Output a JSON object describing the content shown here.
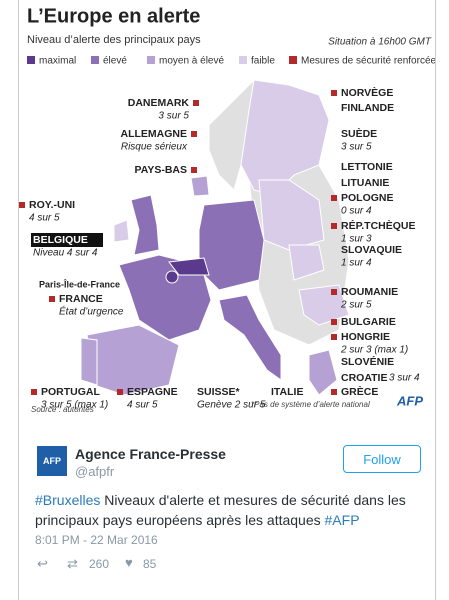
{
  "infographic": {
    "title": "L’Europe en alerte",
    "subtitle": "Niveau d’alerte des principaux pays",
    "situation": "Situation à 16h00 GMT",
    "legend": [
      {
        "label": "maximal",
        "color": "#5b3a8e"
      },
      {
        "label": "élevé",
        "color": "#8b70b6"
      },
      {
        "label": "moyen à élevé",
        "color": "#b5a1d3"
      },
      {
        "label": "faible",
        "color": "#d8cce8"
      },
      {
        "label": "Mesures de sécurité renforcées",
        "color": "#b22a2a"
      }
    ],
    "labels": [
      {
        "name": "DANEMARK",
        "detail": "3 sur 5"
      },
      {
        "name": "ALLEMAGNE",
        "detail": "Risque sérieux"
      },
      {
        "name": "PAYS-BAS"
      },
      {
        "name": "ROY.-UNI",
        "detail": "4 sur 5"
      },
      {
        "name": "BELGIQUE",
        "detail": "Niveau 4 sur 4"
      },
      {
        "name": "Paris-Île-de-France"
      },
      {
        "name": "FRANCE",
        "detail": "État d’urgence"
      },
      {
        "name": "PORTUGAL",
        "detail": "3 sur 5 (max 1)"
      },
      {
        "name": "ESPAGNE",
        "detail": "4 sur 5"
      },
      {
        "name": "SUISSE*",
        "detail": "Genève 2 sur 5"
      },
      {
        "name": "ITALIE"
      },
      {
        "name": "NORVÈGE"
      },
      {
        "name": "FINLANDE"
      },
      {
        "name": "SUÈDE",
        "detail": "3 sur 5"
      },
      {
        "name": "LETTONIE"
      },
      {
        "name": "LITUANIE"
      },
      {
        "name": "POLOGNE",
        "detail": "0 sur 4"
      },
      {
        "name": "RÉP.TCHÈQUE",
        "detail": "1 sur 3"
      },
      {
        "name": "SLOVAQUIE",
        "detail": "1 sur 4"
      },
      {
        "name": "ROUMANIE",
        "detail": "2 sur 5"
      },
      {
        "name": "BULGARIE"
      },
      {
        "name": "HONGRIE",
        "detail": "2 sur 3 (max 1)"
      },
      {
        "name": "SLOVÉNIE"
      },
      {
        "name": "CROATIE",
        "detail": "3 sur 4"
      },
      {
        "name": "GRÈCE"
      }
    ],
    "source": "Source : autorités",
    "footnote": "*Pas de système d’alerte national",
    "logo": "AFP"
  },
  "tweet": {
    "name": "Agence France-Presse",
    "handle": "@afpfr",
    "follow": "Follow",
    "avatar": "AFP",
    "text": [
      {
        "t": "#Bruxelles",
        "tag": true
      },
      {
        "t": " Niveaux d'alerte et mesures de sécurité dans les principaux pays européens après les attaques "
      },
      {
        "t": "#AFP",
        "tag": true
      }
    ],
    "time": "8:01 PM - 22 Mar 2016",
    "retweets": 260,
    "likes": 85
  }
}
